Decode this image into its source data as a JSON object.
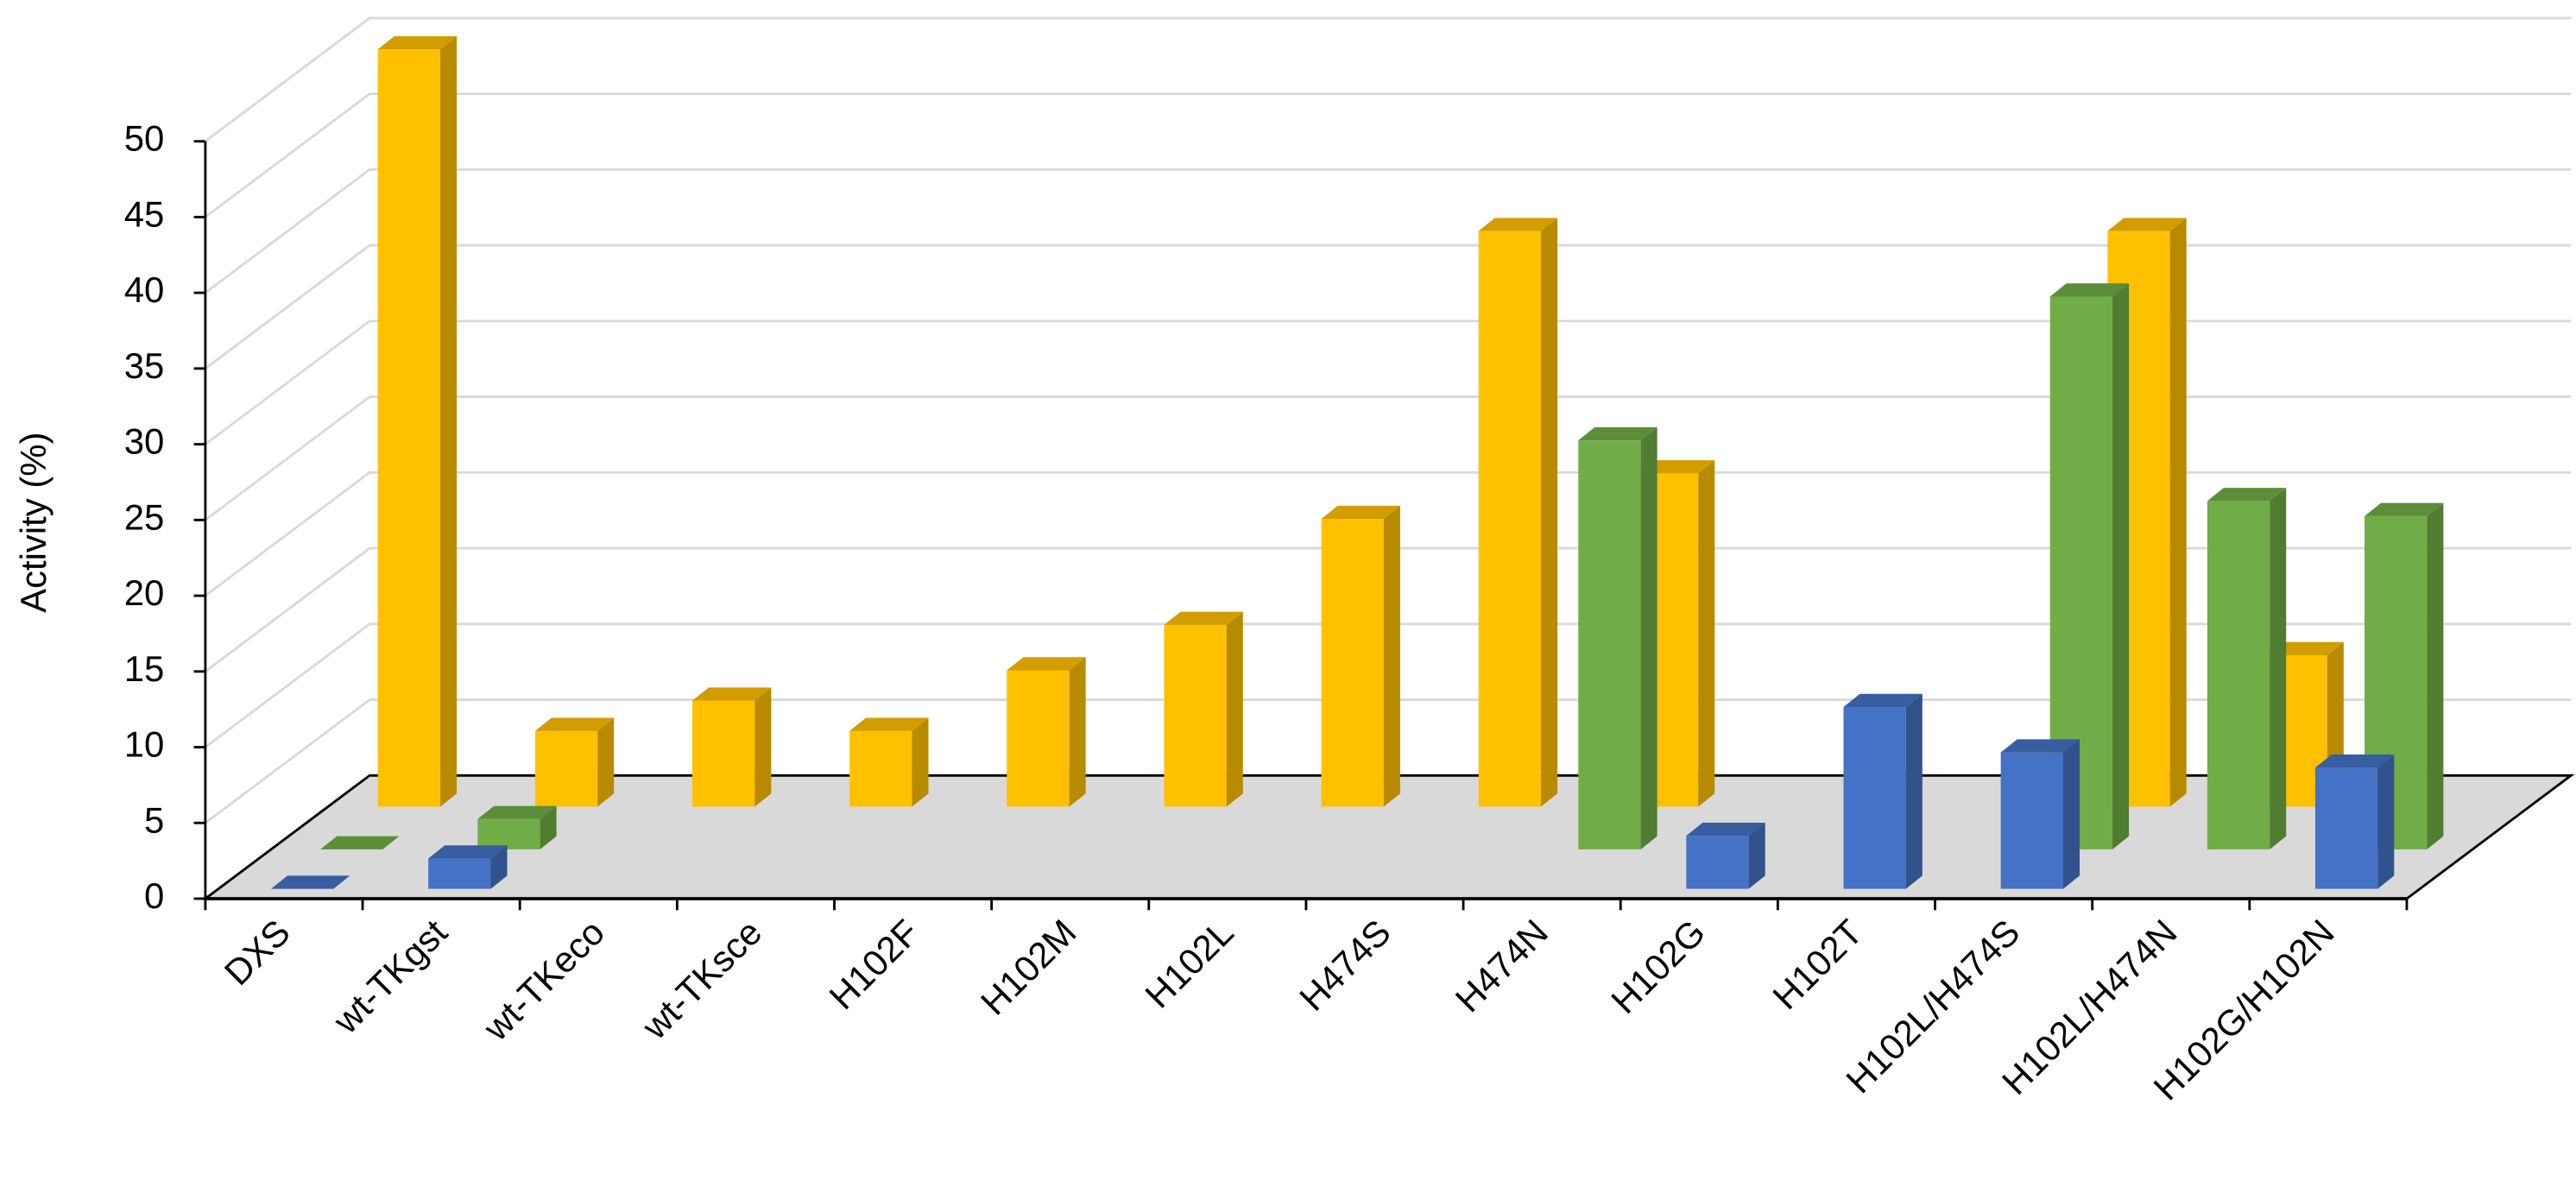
{
  "chart_data": {
    "type": "bar3d",
    "y_label": "Activity (%)",
    "categories": [
      "DXS",
      "wt-TKgst",
      "wt-TKeco",
      "wt-TKsce",
      "H102F",
      "H102M",
      "H102L",
      "H474S",
      "H474N",
      "H102G",
      "H102T",
      "H102L/H474S",
      "H102L/H474N",
      "H102G/H102N"
    ],
    "series": [
      {
        "color": "#ffc000",
        "values": [
          50,
          5,
          7,
          5,
          9,
          12,
          19,
          38,
          22,
          null,
          null,
          38,
          10,
          null
        ]
      },
      {
        "color": "#70ad47",
        "values": [
          0,
          2,
          null,
          null,
          null,
          null,
          null,
          null,
          27,
          null,
          null,
          36.5,
          23,
          22
        ]
      },
      {
        "color": "#4472c4",
        "values": [
          0,
          2,
          null,
          null,
          null,
          null,
          null,
          null,
          null,
          3.5,
          12,
          9,
          null,
          8
        ]
      }
    ],
    "ylim": [
      0,
      50
    ],
    "yticks": [
      0,
      5,
      10,
      15,
      20,
      25,
      30,
      35,
      40,
      45,
      50
    ],
    "grid": true
  }
}
